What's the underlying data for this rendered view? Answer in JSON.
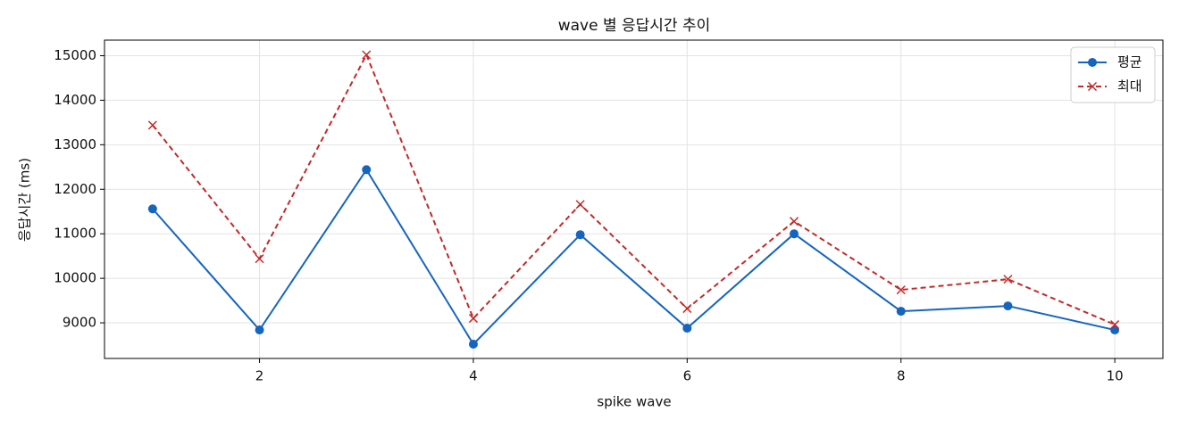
{
  "chart_data": {
    "type": "line",
    "title": "wave 별 응답시간 추이",
    "xlabel": "spike wave",
    "ylabel": "응답시간 (ms)",
    "x": [
      1,
      2,
      3,
      4,
      5,
      6,
      7,
      8,
      9,
      10
    ],
    "series": [
      {
        "name": "평균",
        "color": "#1565c0",
        "linestyle": "solid",
        "marker": "circle",
        "values": [
          11560,
          8840,
          12440,
          8520,
          10980,
          8880,
          11000,
          9260,
          9380,
          8840
        ]
      },
      {
        "name": "최대",
        "color": "#c62828",
        "linestyle": "dashed",
        "marker": "x",
        "values": [
          13440,
          10440,
          15020,
          9100,
          11660,
          9320,
          11280,
          9740,
          9980,
          8960
        ]
      }
    ],
    "xlim": [
      0.55,
      10.45
    ],
    "xticks": [
      2,
      4,
      6,
      8,
      10
    ],
    "ylim": [
      8200,
      15350
    ],
    "yticks": [
      9000,
      10000,
      11000,
      12000,
      13000,
      14000,
      15000
    ],
    "grid": true,
    "legend": "upper-right"
  }
}
